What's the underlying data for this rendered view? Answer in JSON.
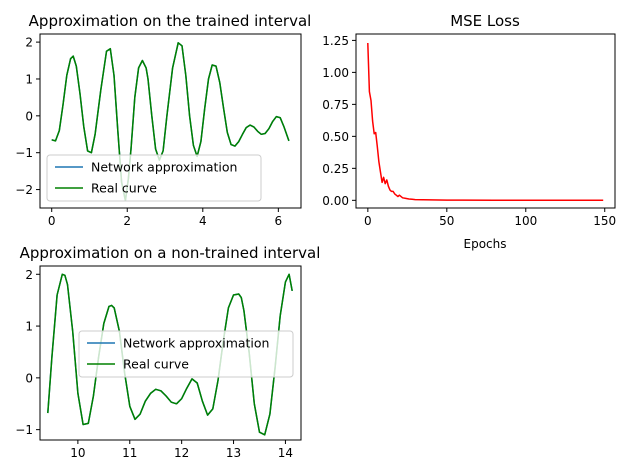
{
  "chart_data": [
    {
      "type": "line",
      "title": "Approximation on the trained interval",
      "xlabel": "",
      "ylabel": "",
      "xlim": [
        -0.31,
        6.6
      ],
      "ylim": [
        -2.5,
        2.22
      ],
      "xticks": [
        0,
        2,
        4,
        6
      ],
      "yticks": [
        -2,
        -1,
        0,
        1,
        2
      ],
      "grid": false,
      "legend": {
        "position": "lower-left",
        "entries": [
          "Network approximation",
          "Real curve"
        ]
      },
      "series": [
        {
          "name": "Network approximation",
          "color": "#1f77b4",
          "x": [
            0,
            0.1,
            0.2,
            0.3,
            0.4,
            0.5,
            0.57,
            0.65,
            0.75,
            0.85,
            0.95,
            1.05,
            1.15,
            1.3,
            1.45,
            1.55,
            1.65,
            1.75,
            1.85,
            1.95,
            2.03,
            2.1,
            2.2,
            2.3,
            2.4,
            2.5,
            2.55,
            2.65,
            2.75,
            2.85,
            2.95,
            3.05,
            3.2,
            3.35,
            3.45,
            3.55,
            3.65,
            3.75,
            3.85,
            3.95,
            4.05,
            4.15,
            4.25,
            4.35,
            4.45,
            4.55,
            4.65,
            4.75,
            4.85,
            4.95,
            5.05,
            5.15,
            5.25,
            5.35,
            5.45,
            5.55,
            5.65,
            5.75,
            5.85,
            5.95,
            6.05,
            6.15,
            6.28
          ],
          "y": [
            -0.65,
            -0.68,
            -0.4,
            0.3,
            1.1,
            1.55,
            1.62,
            1.35,
            0.6,
            -0.3,
            -0.95,
            -1.0,
            -0.5,
            0.7,
            1.75,
            1.82,
            1.1,
            -0.4,
            -1.8,
            -2.3,
            -1.7,
            -0.9,
            0.5,
            1.3,
            1.5,
            1.3,
            1.0,
            0.0,
            -0.9,
            -1.2,
            -0.95,
            0.0,
            1.3,
            1.98,
            1.9,
            1.1,
            0.0,
            -0.8,
            -1.1,
            -0.7,
            0.2,
            1.0,
            1.38,
            1.35,
            0.9,
            0.2,
            -0.45,
            -0.78,
            -0.82,
            -0.7,
            -0.5,
            -0.32,
            -0.25,
            -0.3,
            -0.42,
            -0.5,
            -0.48,
            -0.35,
            -0.15,
            -0.02,
            -0.05,
            -0.3,
            -0.68
          ]
        },
        {
          "name": "Real curve",
          "color": "#008000",
          "x": [
            0,
            0.1,
            0.2,
            0.3,
            0.4,
            0.5,
            0.57,
            0.65,
            0.75,
            0.85,
            0.95,
            1.05,
            1.15,
            1.3,
            1.45,
            1.55,
            1.65,
            1.75,
            1.85,
            1.95,
            2.03,
            2.1,
            2.2,
            2.3,
            2.4,
            2.5,
            2.55,
            2.65,
            2.75,
            2.85,
            2.95,
            3.05,
            3.2,
            3.35,
            3.45,
            3.55,
            3.65,
            3.75,
            3.85,
            3.95,
            4.05,
            4.15,
            4.25,
            4.35,
            4.45,
            4.55,
            4.65,
            4.75,
            4.85,
            4.95,
            5.05,
            5.15,
            5.25,
            5.35,
            5.45,
            5.55,
            5.65,
            5.75,
            5.85,
            5.95,
            6.05,
            6.15,
            6.28
          ],
          "y": [
            -0.65,
            -0.68,
            -0.4,
            0.3,
            1.1,
            1.55,
            1.62,
            1.35,
            0.6,
            -0.3,
            -0.95,
            -1.0,
            -0.5,
            0.7,
            1.75,
            1.82,
            1.1,
            -0.4,
            -1.8,
            -2.3,
            -1.7,
            -0.9,
            0.5,
            1.3,
            1.5,
            1.3,
            1.0,
            0.0,
            -0.9,
            -1.2,
            -0.95,
            0.0,
            1.3,
            1.98,
            1.9,
            1.1,
            0.0,
            -0.8,
            -1.1,
            -0.7,
            0.2,
            1.0,
            1.38,
            1.35,
            0.9,
            0.2,
            -0.45,
            -0.78,
            -0.82,
            -0.7,
            -0.5,
            -0.32,
            -0.25,
            -0.3,
            -0.42,
            -0.5,
            -0.48,
            -0.35,
            -0.15,
            -0.02,
            -0.05,
            -0.3,
            -0.68
          ]
        }
      ]
    },
    {
      "type": "line",
      "title": "MSE Loss",
      "xlabel": "Epochs",
      "ylabel": "",
      "xlim": [
        -7.5,
        156.5
      ],
      "ylim": [
        -0.06,
        1.3
      ],
      "xticks": [
        0,
        50,
        100,
        150
      ],
      "yticks": [
        0.0,
        0.25,
        0.5,
        0.75,
        1.0,
        1.25
      ],
      "ytick_labels": [
        "0.00",
        "0.25",
        "0.50",
        "0.75",
        "1.00",
        "1.25"
      ],
      "grid": false,
      "series": [
        {
          "color": "#ff0000",
          "x": [
            0,
            1,
            2,
            3,
            4,
            5,
            6,
            7,
            8,
            9,
            10,
            11,
            12,
            13,
            14,
            15,
            16,
            17,
            18,
            19,
            20,
            22,
            24,
            26,
            28,
            30,
            35,
            40,
            50,
            60,
            80,
            100,
            120,
            149
          ],
          "y": [
            1.23,
            0.85,
            0.78,
            0.62,
            0.52,
            0.53,
            0.42,
            0.3,
            0.22,
            0.14,
            0.18,
            0.13,
            0.16,
            0.11,
            0.08,
            0.07,
            0.07,
            0.05,
            0.04,
            0.03,
            0.04,
            0.02,
            0.015,
            0.01,
            0.008,
            0.006,
            0.004,
            0.003,
            0.002,
            0.002,
            0.001,
            0.001,
            0.001,
            0.001
          ]
        }
      ]
    },
    {
      "type": "line",
      "title": "Approximation on a non-trained interval",
      "xlabel": "",
      "ylabel": "",
      "xlim": [
        9.27,
        14.3
      ],
      "ylim": [
        -1.2,
        2.16
      ],
      "xticks": [
        10,
        11,
        12,
        13,
        14
      ],
      "yticks": [
        -1,
        0,
        1,
        2
      ],
      "grid": false,
      "legend": {
        "position": "center-right",
        "entries": [
          "Network approximation",
          "Real curve"
        ]
      },
      "series": [
        {
          "name": "Network approximation",
          "color": "#1f77b4",
          "x": [
            9.42,
            9.5,
            9.6,
            9.7,
            9.75,
            9.8,
            9.9,
            10.0,
            10.1,
            10.2,
            10.3,
            10.4,
            10.5,
            10.6,
            10.65,
            10.7,
            10.8,
            10.9,
            11.0,
            11.1,
            11.2,
            11.3,
            11.4,
            11.5,
            11.6,
            11.7,
            11.8,
            11.9,
            12.0,
            12.1,
            12.2,
            12.3,
            12.4,
            12.5,
            12.6,
            12.7,
            12.8,
            12.9,
            13.0,
            13.1,
            13.15,
            13.2,
            13.3,
            13.4,
            13.5,
            13.6,
            13.7,
            13.8,
            13.9,
            14.0,
            14.07,
            14.13
          ],
          "y": [
            -0.68,
            0.4,
            1.6,
            2.0,
            1.98,
            1.8,
            0.9,
            -0.3,
            -0.9,
            -0.88,
            -0.35,
            0.4,
            1.05,
            1.38,
            1.4,
            1.35,
            0.9,
            0.1,
            -0.55,
            -0.8,
            -0.7,
            -0.45,
            -0.3,
            -0.22,
            -0.25,
            -0.35,
            -0.47,
            -0.5,
            -0.4,
            -0.2,
            -0.02,
            -0.1,
            -0.45,
            -0.72,
            -0.6,
            -0.05,
            0.7,
            1.35,
            1.6,
            1.62,
            1.55,
            1.3,
            0.5,
            -0.5,
            -1.05,
            -1.1,
            -0.7,
            0.2,
            1.2,
            1.85,
            2.0,
            1.68
          ]
        },
        {
          "name": "Real curve",
          "color": "#008000",
          "x": [
            9.42,
            9.5,
            9.6,
            9.7,
            9.75,
            9.8,
            9.9,
            10.0,
            10.1,
            10.2,
            10.3,
            10.4,
            10.5,
            10.6,
            10.65,
            10.7,
            10.8,
            10.9,
            11.0,
            11.1,
            11.2,
            11.3,
            11.4,
            11.5,
            11.6,
            11.7,
            11.8,
            11.9,
            12.0,
            12.1,
            12.2,
            12.3,
            12.4,
            12.5,
            12.6,
            12.7,
            12.8,
            12.9,
            13.0,
            13.1,
            13.15,
            13.2,
            13.3,
            13.4,
            13.5,
            13.6,
            13.7,
            13.8,
            13.9,
            14.0,
            14.07,
            14.13
          ],
          "y": [
            -0.68,
            0.4,
            1.6,
            2.0,
            1.98,
            1.8,
            0.9,
            -0.3,
            -0.9,
            -0.88,
            -0.35,
            0.4,
            1.05,
            1.38,
            1.4,
            1.35,
            0.9,
            0.1,
            -0.55,
            -0.8,
            -0.7,
            -0.45,
            -0.3,
            -0.22,
            -0.25,
            -0.35,
            -0.47,
            -0.5,
            -0.4,
            -0.2,
            -0.02,
            -0.1,
            -0.45,
            -0.72,
            -0.6,
            -0.05,
            0.7,
            1.35,
            1.6,
            1.62,
            1.55,
            1.3,
            0.5,
            -0.5,
            -1.05,
            -1.1,
            -0.7,
            0.2,
            1.2,
            1.85,
            2.0,
            1.68
          ]
        }
      ]
    }
  ]
}
